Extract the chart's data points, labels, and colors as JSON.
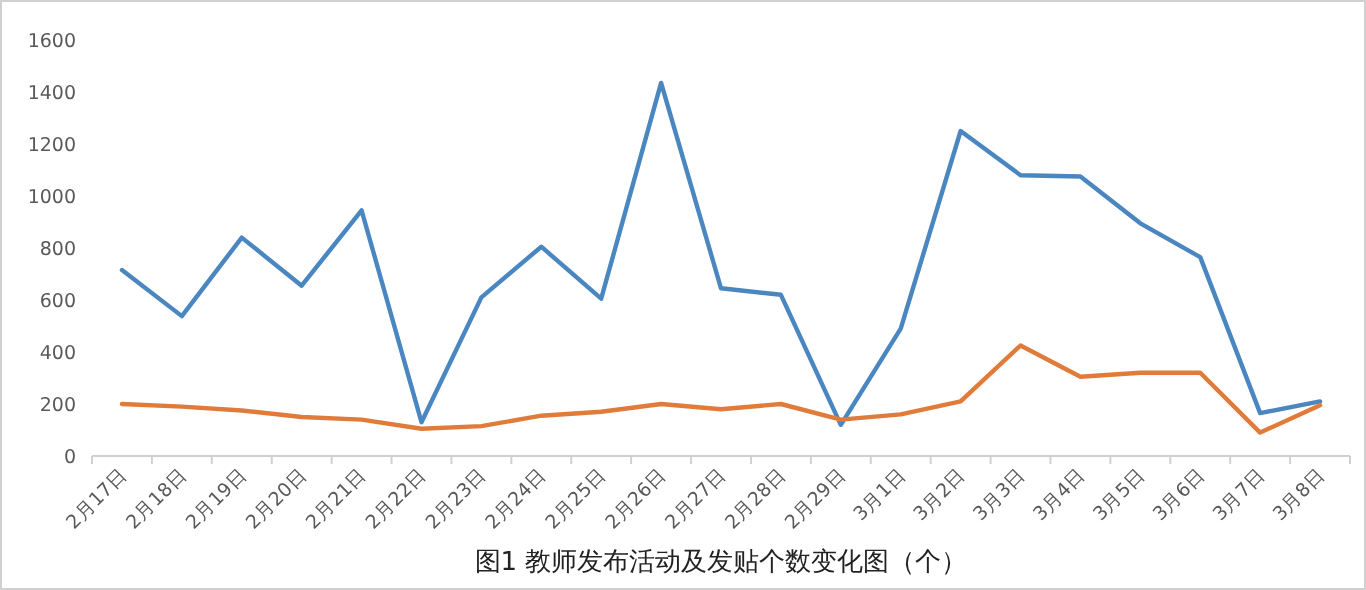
{
  "chart_data": {
    "type": "line",
    "title": "图1  教师发布活动及发贴个数变化图（个）",
    "categories": [
      "2月17日",
      "2月18日",
      "2月19日",
      "2月20日",
      "2月21日",
      "2月22日",
      "2月23日",
      "2月24日",
      "2月25日",
      "2月26日",
      "2月27日",
      "2月28日",
      "2月29日",
      "3月1日",
      "3月2日",
      "3月3日",
      "3月4日",
      "3月5日",
      "3月6日",
      "3月7日",
      "3月8日"
    ],
    "series": [
      {
        "color": "#4a86c0",
        "values": [
          715,
          538,
          840,
          655,
          945,
          130,
          610,
          805,
          605,
          1435,
          645,
          620,
          120,
          490,
          1250,
          1080,
          1075,
          895,
          765,
          165,
          210
        ]
      },
      {
        "color": "#e07b39",
        "values": [
          200,
          190,
          175,
          150,
          140,
          105,
          115,
          155,
          170,
          200,
          180,
          200,
          140,
          160,
          210,
          425,
          305,
          320,
          320,
          90,
          195
        ]
      }
    ],
    "ylim": [
      0,
      1600
    ],
    "yticks": [
      0,
      200,
      400,
      600,
      800,
      1000,
      1200,
      1400,
      1600
    ],
    "grid": false,
    "marker": "none",
    "line_style": "solid"
  }
}
